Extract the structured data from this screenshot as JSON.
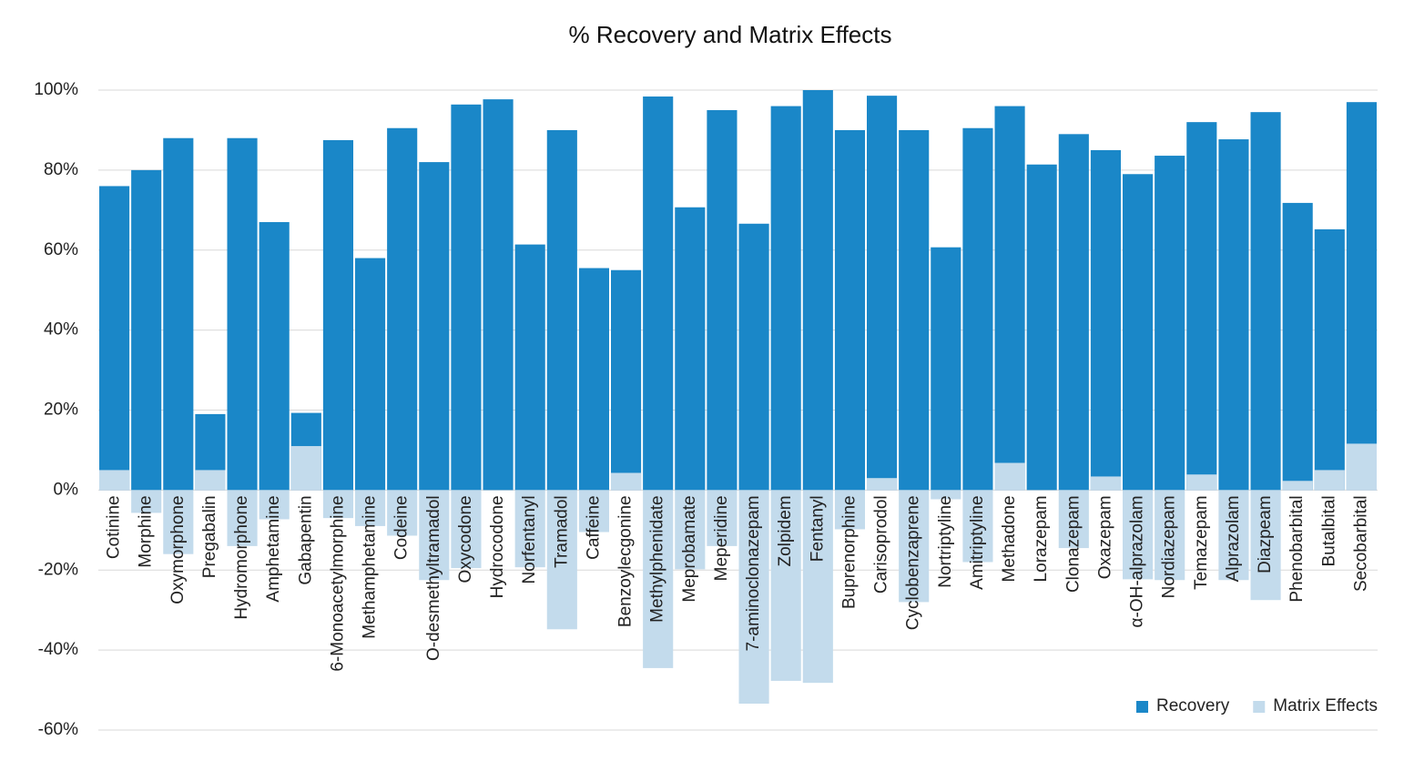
{
  "chart_data": {
    "type": "bar",
    "title": "% Recovery and Matrix Effects",
    "categories": [
      "Cotinine",
      "Morphine",
      "Oxymorphone",
      "Pregabalin",
      "Hydromorphone",
      "Amphetamine",
      "Gabapentin",
      "6-Monoacetylmorphine",
      "Methamphetamine",
      "Codeine",
      "O-desmethyltramadol",
      "Oxycodone",
      "Hydrocodone",
      "Norfentanyl",
      "Tramadol",
      "Caffeine",
      "Benzoylecgonine",
      "Methylphenidate",
      "Meprobamate",
      "Meperidine",
      "7-aminoclonazepam",
      "Zolpidem",
      "Fentanyl",
      "Buprenorphine",
      "Carisoprodol",
      "Cyclobenzaprene",
      "Nortriptyline",
      "Amitriptyline",
      "Methadone",
      "Lorazepam",
      "Clonazepam",
      "Oxazepam",
      "α-OH-alprazolam",
      "Nordiazepam",
      "Temazepam",
      "Alprazolam",
      "Diazpeam",
      "Phenobarbital",
      "Butalbital",
      "Secobarbital"
    ],
    "series": [
      {
        "name": "Recovery",
        "color": "#1a87c8",
        "values": [
          76,
          80,
          88,
          19,
          88,
          67,
          19.3,
          87.5,
          58,
          90.5,
          82,
          96.4,
          97.7,
          61.4,
          90,
          55.5,
          55,
          98.4,
          70.7,
          95,
          66.6,
          96,
          100,
          90,
          98.6,
          90,
          60.7,
          90.5,
          96,
          81.4,
          89,
          85,
          79,
          83.6,
          92,
          87.7,
          94.5,
          71.8,
          65.2,
          97
        ]
      },
      {
        "name": "Matrix Effects",
        "color": "#c3dbec",
        "values": [
          5,
          -5.7,
          -16,
          5,
          -14,
          -7.3,
          11,
          -7,
          -9,
          -11.4,
          -22.5,
          -19.5,
          0,
          -19.3,
          -34.8,
          -10.5,
          4.3,
          -44.5,
          -19.8,
          -14,
          -53.4,
          -47.7,
          -48.2,
          -9.8,
          3,
          -28,
          -2.3,
          -18,
          6.8,
          0,
          -14.5,
          3.4,
          -22.3,
          -22.5,
          3.9,
          -22.5,
          -27.5,
          2.3,
          5,
          11.6
        ]
      }
    ],
    "ylim": [
      -60,
      100
    ],
    "yticks": [
      {
        "value": -60,
        "label": "-60%"
      },
      {
        "value": -40,
        "label": "-40%"
      },
      {
        "value": -20,
        "label": "-20%"
      },
      {
        "value": 0,
        "label": "0%"
      },
      {
        "value": 20,
        "label": "20%"
      },
      {
        "value": 40,
        "label": "40%"
      },
      {
        "value": 60,
        "label": "60%"
      },
      {
        "value": 80,
        "label": "80%"
      },
      {
        "value": 100,
        "label": "100%"
      }
    ],
    "grid": true,
    "legend": "bottom-right"
  }
}
